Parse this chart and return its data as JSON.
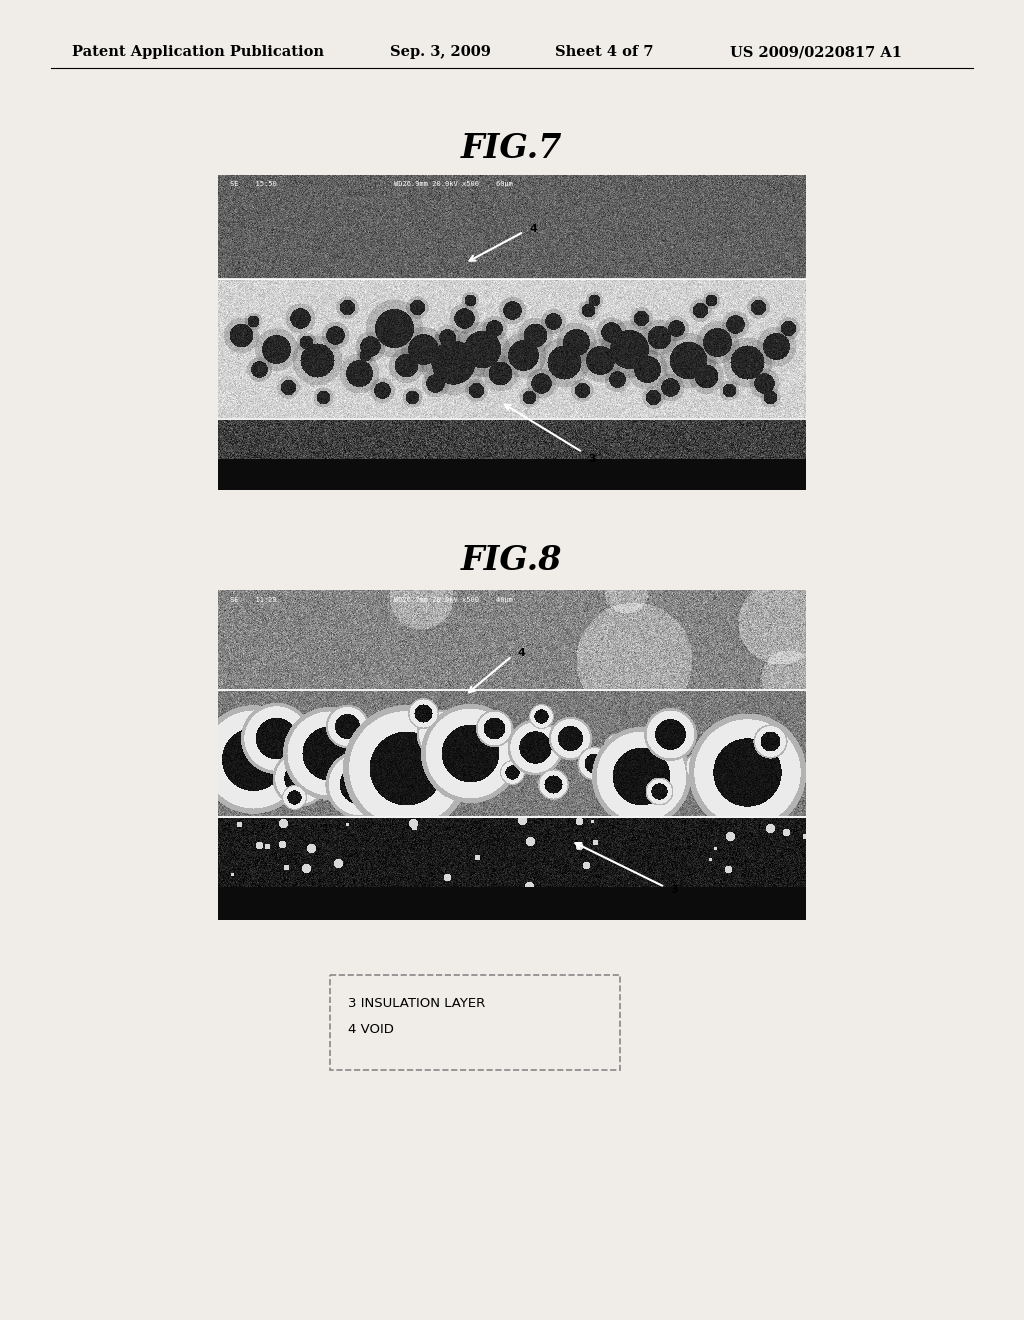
{
  "page_background": "#f0ede8",
  "header_text": "Patent Application Publication",
  "header_date": "Sep. 3, 2009",
  "header_sheet": "Sheet 4 of 7",
  "header_patent": "US 2009/0220817 A1",
  "header_fontsize": 10.5,
  "fig7_title": "FIG.7",
  "fig7_title_fontsize": 24,
  "fig8_title": "FIG.8",
  "fig8_title_fontsize": 24,
  "legend_text_line1": "3 INSULATION LAYER",
  "legend_text_line2": "4 VOID",
  "legend_fontsize": 9.5
}
